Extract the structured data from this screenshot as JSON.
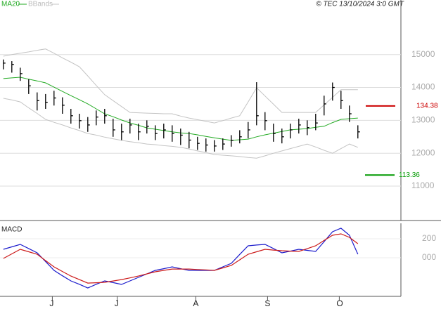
{
  "chart_data": [
    {
      "type": "ohlc",
      "credit": "© TEC 13/10/2024 3:0 GMT",
      "xlim": [
        -0.4,
        47.1
      ],
      "ylim": [
        10040,
        16360
      ],
      "yticks": [
        11000,
        12000,
        13000,
        14000,
        15000
      ],
      "grid": true,
      "color": "#000000",
      "high": [
        14850,
        14800,
        14600,
        14250,
        13850,
        13800,
        13900,
        13700,
        13350,
        13200,
        13100,
        13300,
        13350,
        13050,
        12900,
        13050,
        12900,
        13000,
        12850,
        12900,
        12850,
        12750,
        12650,
        12500,
        12450,
        12400,
        12450,
        12550,
        12700,
        12950,
        14160,
        13250,
        12900,
        12750,
        12900,
        13050,
        13000,
        13200,
        13750,
        14150,
        13900,
        13450,
        12850
      ],
      "low": [
        14550,
        14450,
        14200,
        13800,
        13300,
        13350,
        13450,
        13200,
        12900,
        12750,
        12650,
        12850,
        12900,
        12500,
        12400,
        12600,
        12400,
        12600,
        12400,
        12450,
        12350,
        12250,
        12150,
        12100,
        12050,
        12050,
        12100,
        12200,
        12300,
        12450,
        12850,
        12700,
        12350,
        12300,
        12450,
        12600,
        12550,
        12700,
        13150,
        13600,
        13350,
        12950,
        12450
      ],
      "close": [
        14740,
        14700,
        14420,
        14050,
        13600,
        13550,
        13680,
        13460,
        13140,
        12990,
        12860,
        13100,
        13140,
        12710,
        12650,
        12860,
        12650,
        12820,
        12600,
        12710,
        12600,
        12550,
        12400,
        12300,
        12250,
        12220,
        12280,
        12390,
        12500,
        12710,
        13140,
        12990,
        12600,
        12500,
        12710,
        12860,
        12780,
        12920,
        13500,
        14000,
        13600,
        13200,
        12650
      ],
      "ma": {
        "name": "MA20",
        "color": "#22aa22",
        "values": [
          14270,
          14290,
          14310,
          14250,
          14200,
          14140,
          14010,
          13880,
          13750,
          13630,
          13500,
          13350,
          13200,
          13110,
          13010,
          12920,
          12850,
          12770,
          12730,
          12690,
          12650,
          12620,
          12600,
          12560,
          12510,
          12470,
          12430,
          12390,
          12410,
          12430,
          12500,
          12560,
          12610,
          12660,
          12710,
          12730,
          12750,
          12790,
          12820,
          12930,
          13030,
          13050,
          13070
        ]
      },
      "bands": {
        "name": "BBands",
        "color": "#c4c4c4",
        "upper": [
          14950,
          15000,
          15040,
          15080,
          15130,
          15170,
          15040,
          14900,
          14770,
          14630,
          14350,
          14060,
          13780,
          13600,
          13420,
          13240,
          13230,
          13220,
          13210,
          13200,
          13200,
          13130,
          13070,
          13020,
          12970,
          12920,
          12990,
          13070,
          13140,
          13560,
          13990,
          13740,
          13490,
          13240,
          13240,
          13240,
          13240,
          13240,
          13470,
          13700,
          13930,
          13930,
          13930
        ],
        "lower": [
          13670,
          13620,
          13560,
          13380,
          13210,
          13030,
          12940,
          12860,
          12770,
          12690,
          12600,
          12550,
          12490,
          12440,
          12390,
          12350,
          12320,
          12280,
          12260,
          12230,
          12210,
          12180,
          12130,
          12070,
          12020,
          11960,
          11940,
          11920,
          11900,
          11870,
          11850,
          11920,
          12000,
          12070,
          12140,
          12210,
          12280,
          12190,
          12090,
          12000,
          12140,
          12280,
          12180
        ]
      },
      "annotations": [
        {
          "value": 13438,
          "label": "134.38",
          "color": "#cc0000"
        },
        {
          "value": 11336,
          "label": "113.36",
          "color": "#009900"
        }
      ]
    },
    {
      "type": "line",
      "title": "MACD",
      "xlim": [
        -0.4,
        47.1
      ],
      "ylim": [
        -407,
        363
      ],
      "yticks": [
        200,
        {
          "value": 0,
          "label": "000"
        }
      ],
      "xticks": [
        {
          "value": 5.8,
          "label": "J"
        },
        {
          "value": 13.5,
          "label": "J"
        },
        {
          "value": 22.8,
          "label": "A"
        },
        {
          "value": 31.3,
          "label": "S"
        },
        {
          "value": 39.8,
          "label": "O"
        }
      ],
      "series": [
        {
          "color": "#1a1acc",
          "values": [
            89,
            115,
            141,
            97,
            52,
            -40,
            -133,
            -190,
            -244,
            -280,
            -319,
            -280,
            -244,
            -262,
            -281,
            -244,
            -207,
            -170,
            -133,
            -115,
            -96,
            -115,
            -133,
            -133,
            -133,
            -133,
            -96,
            -59,
            35,
            126,
            134,
            141,
            97,
            52,
            70,
            89,
            78,
            67,
            170,
            274,
            311,
            237,
            37
          ]
        },
        {
          "color": "#cc1a1a",
          "values": [
            -7,
            41,
            89,
            63,
            37,
            -30,
            -96,
            -145,
            -193,
            -230,
            -267,
            -263,
            -259,
            -245,
            -230,
            -212,
            -193,
            -170,
            -148,
            -133,
            -119,
            -119,
            -119,
            -124,
            -128,
            -133,
            -107,
            -81,
            -22,
            37,
            63,
            89,
            81,
            74,
            70,
            67,
            96,
            126,
            182,
            237,
            252,
            215,
            148
          ]
        }
      ]
    }
  ]
}
